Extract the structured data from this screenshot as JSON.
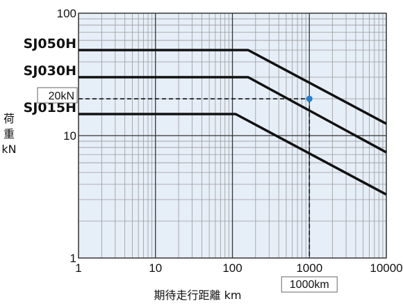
{
  "chart_data": {
    "type": "line",
    "x_scale": "log",
    "y_scale": "log",
    "xlim": [
      1,
      10000
    ],
    "ylim": [
      1,
      100
    ],
    "x_ticks": [
      "1",
      "10",
      "100",
      "1000",
      "10000"
    ],
    "y_ticks": [
      "1",
      "10",
      "100"
    ],
    "xlabel": "期待走行距離 km",
    "ylabel": [
      "荷",
      "重",
      "kN"
    ],
    "grid": true,
    "plot_background": "#e6eef8",
    "line_color": "#111111",
    "series": [
      {
        "name": "SJ050H",
        "points": [
          [
            1,
            50
          ],
          [
            160,
            50
          ],
          [
            10000,
            12.5
          ]
        ]
      },
      {
        "name": "SJ030H",
        "points": [
          [
            1,
            30
          ],
          [
            160,
            30
          ],
          [
            10000,
            7.3
          ]
        ]
      },
      {
        "name": "SJ015H",
        "points": [
          [
            1,
            15
          ],
          [
            110,
            15
          ],
          [
            10000,
            3.3
          ]
        ]
      }
    ],
    "marker": {
      "x": 1000,
      "y": 20,
      "color": "#1f7fd1"
    },
    "annotations": {
      "y_callout": "20kN",
      "x_callout": "1000km"
    }
  }
}
